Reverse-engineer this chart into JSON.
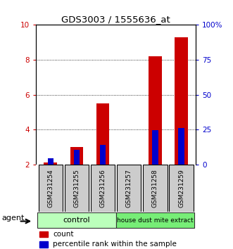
{
  "title": "GDS3003 / 1555636_at",
  "samples": [
    "GSM231254",
    "GSM231255",
    "GSM231256",
    "GSM231257",
    "GSM231258",
    "GSM231259"
  ],
  "red_values": [
    2.1,
    3.0,
    5.5,
    2.0,
    8.2,
    9.3
  ],
  "blue_values": [
    2.35,
    2.82,
    3.1,
    2.0,
    3.95,
    4.1
  ],
  "red_color": "#cc0000",
  "blue_color": "#0000cc",
  "ymin": 2,
  "ymax": 10,
  "yticks": [
    2,
    4,
    6,
    8,
    10
  ],
  "right_yticks": [
    0,
    25,
    50,
    75,
    100
  ],
  "right_yticklabels": [
    "0",
    "25",
    "50",
    "75",
    "100%"
  ],
  "control_color": "#bbffbb",
  "hdm_color": "#77ee77",
  "sample_bg": "#cccccc",
  "bar_width": 0.5,
  "legend_red_label": "count",
  "legend_blue_label": "percentile rank within the sample",
  "agent_label": "agent"
}
